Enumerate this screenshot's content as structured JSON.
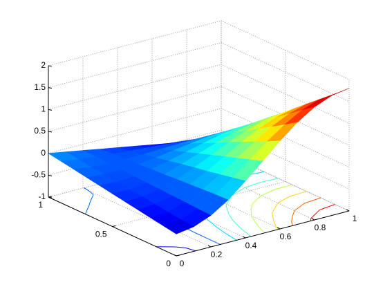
{
  "chart_data": {
    "type": "surface",
    "x": [
      0,
      0.1,
      0.2,
      0.3,
      0.4,
      0.5,
      0.6,
      0.7,
      0.8,
      0.9,
      1
    ],
    "y": [
      0,
      0.1,
      0.2,
      0.3,
      0.4,
      0.5,
      0.6,
      0.7,
      0.8,
      0.9,
      1
    ],
    "z": [
      [
        -0.5,
        -0.44,
        -0.28,
        -0.03,
        0.3,
        0.65,
        1.01,
        1.33,
        1.58,
        1.74,
        1.8
      ],
      [
        -0.45,
        -0.41,
        -0.27,
        -0.04,
        0.24,
        0.55,
        0.86,
        1.14,
        1.37,
        1.51,
        1.55
      ],
      [
        -0.4,
        -0.37,
        -0.25,
        -0.06,
        0.18,
        0.45,
        0.72,
        0.96,
        1.15,
        1.27,
        1.3
      ],
      [
        -0.35,
        -0.33,
        -0.24,
        -0.08,
        0.12,
        0.35,
        0.58,
        0.78,
        0.94,
        1.03,
        1.05
      ],
      [
        -0.3,
        -0.29,
        -0.22,
        -0.1,
        0.07,
        0.25,
        0.44,
        0.6,
        0.72,
        0.79,
        0.8
      ],
      [
        -0.25,
        -0.26,
        -0.21,
        -0.12,
        0.01,
        0.15,
        0.29,
        0.42,
        0.51,
        0.56,
        0.55
      ],
      [
        -0.2,
        -0.22,
        -0.2,
        -0.14,
        -0.05,
        0.05,
        0.15,
        0.24,
        0.3,
        0.32,
        0.3
      ],
      [
        -0.15,
        -0.18,
        -0.18,
        -0.16,
        -0.11,
        -0.05,
        0.01,
        0.06,
        0.08,
        0.08,
        0.05
      ],
      [
        -0.1,
        -0.15,
        -0.17,
        -0.17,
        -0.17,
        -0.15,
        -0.14,
        -0.13,
        -0.13,
        -0.16,
        -0.2
      ],
      [
        -0.05,
        -0.11,
        -0.15,
        -0.19,
        -0.22,
        -0.25,
        -0.28,
        -0.31,
        -0.35,
        -0.39,
        -0.45
      ],
      [
        0,
        -0.07,
        -0.14,
        -0.21,
        -0.28,
        -0.35,
        -0.42,
        -0.49,
        -0.56,
        -0.63,
        -0.7
      ]
    ],
    "xlim": [
      0,
      1
    ],
    "ylim": [
      0,
      1
    ],
    "zlim": [
      -1,
      2
    ],
    "xticks": [
      0,
      0.2,
      0.4,
      0.6,
      0.8,
      1
    ],
    "yticks": [
      0,
      0.5,
      1
    ],
    "zticks": [
      -1,
      -0.5,
      0,
      0.5,
      1,
      1.5,
      2
    ],
    "colormap": "jet",
    "grid": true,
    "contour": true
  }
}
